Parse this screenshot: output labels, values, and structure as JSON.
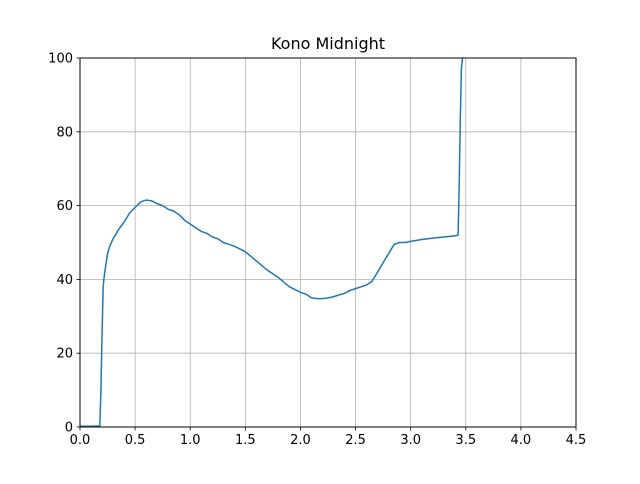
{
  "chart_data": {
    "type": "line",
    "title": "Kono Midnight",
    "xlabel": "",
    "ylabel": "",
    "xlim": [
      0,
      4.5
    ],
    "ylim": [
      0,
      100
    ],
    "xticks": [
      0.0,
      0.5,
      1.0,
      1.5,
      2.0,
      2.5,
      3.0,
      3.5,
      4.0,
      4.5
    ],
    "xtick_labels": [
      "0.0",
      "0.5",
      "1.0",
      "1.5",
      "2.0",
      "2.5",
      "3.0",
      "3.5",
      "4.0",
      "4.5"
    ],
    "yticks": [
      0,
      20,
      40,
      60,
      80,
      100
    ],
    "ytick_labels": [
      "0",
      "20",
      "40",
      "60",
      "80",
      "100"
    ],
    "grid": true,
    "series": [
      {
        "color": "#1f77b4",
        "x": [
          0.0,
          0.1,
          0.18,
          0.19,
          0.2,
          0.21,
          0.22,
          0.23,
          0.25,
          0.27,
          0.3,
          0.35,
          0.4,
          0.45,
          0.5,
          0.55,
          0.6,
          0.65,
          0.7,
          0.75,
          0.8,
          0.85,
          0.9,
          0.95,
          1.0,
          1.05,
          1.1,
          1.15,
          1.2,
          1.25,
          1.3,
          1.35,
          1.4,
          1.5,
          1.6,
          1.7,
          1.8,
          1.9,
          2.0,
          2.05,
          2.1,
          2.15,
          2.2,
          2.25,
          2.3,
          2.35,
          2.4,
          2.45,
          2.5,
          2.55,
          2.6,
          2.65,
          2.7,
          2.75,
          2.8,
          2.85,
          2.9,
          2.95,
          3.0,
          3.1,
          3.2,
          3.3,
          3.4,
          3.43,
          3.44,
          3.45,
          3.46,
          3.47
        ],
        "y": [
          0.2,
          0.2,
          0.3,
          10,
          25,
          38,
          41,
          43,
          47,
          49,
          51,
          53.5,
          55.5,
          58,
          59.5,
          61,
          61.5,
          61.3,
          60.5,
          60,
          59,
          58.5,
          57.5,
          56,
          55,
          54,
          53,
          52.5,
          51.5,
          51,
          50,
          49.5,
          49,
          47.5,
          45,
          42.5,
          40.5,
          38,
          36.5,
          36,
          35,
          34.8,
          34.8,
          35,
          35.3,
          35.8,
          36.2,
          37,
          37.5,
          38,
          38.5,
          39.5,
          42,
          44.5,
          47,
          49.5,
          50,
          50,
          50.3,
          50.8,
          51.2,
          51.5,
          51.8,
          52,
          65,
          83,
          97,
          100
        ]
      }
    ]
  }
}
